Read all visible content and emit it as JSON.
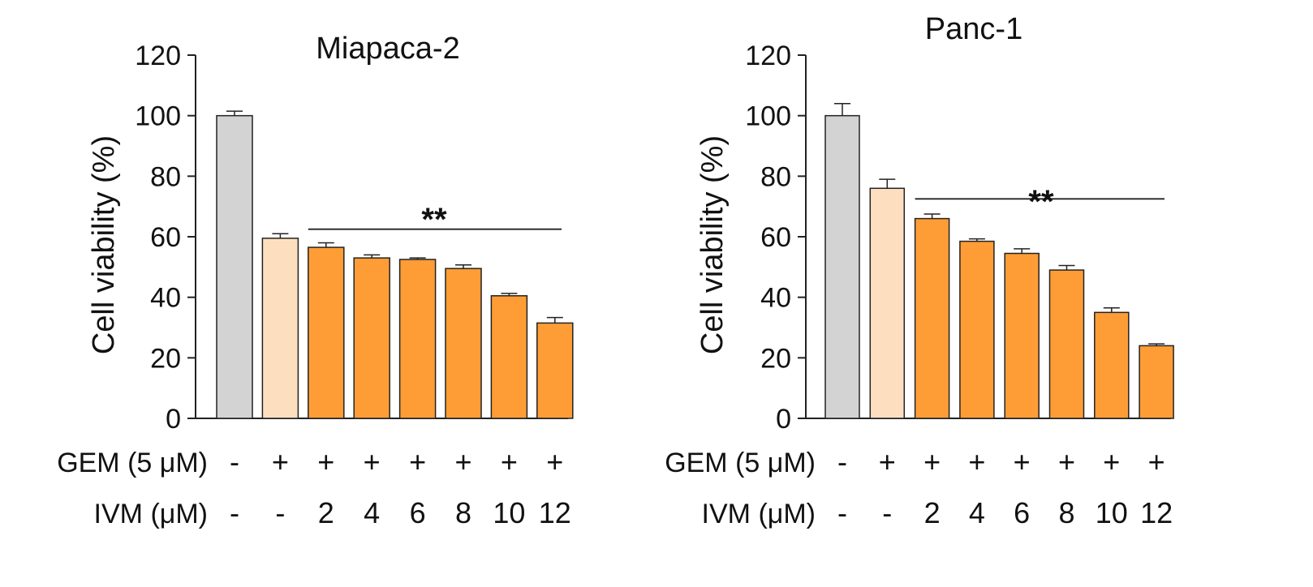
{
  "colors": {
    "control": "#d3d3d3",
    "gem_only": "#fddfc0",
    "treated": "#fe9d36",
    "stroke": "#222222"
  },
  "chart_data": [
    {
      "type": "bar",
      "title": "Miapaca-2",
      "xlabel": "",
      "ylabel": "Cell viability (%)",
      "ylim": [
        0,
        120
      ],
      "yticks": [
        0,
        20,
        40,
        60,
        80,
        100,
        120
      ],
      "yticks_labels": [
        "0",
        "20",
        "40",
        "60",
        "80",
        "100",
        "120"
      ],
      "values": [
        100,
        59.5,
        56.5,
        53,
        52.5,
        49.5,
        40.5,
        31.5
      ],
      "errors": [
        1.5,
        1.5,
        1.5,
        1,
        0.5,
        1.2,
        0.8,
        1.8
      ],
      "bar_colors": [
        "control",
        "gem_only",
        "treated",
        "treated",
        "treated",
        "treated",
        "treated",
        "treated"
      ],
      "row_labels": [
        "GEM (5 μM)",
        "IVM (μM)"
      ],
      "gem_signs": [
        "-",
        "+",
        "+",
        "+",
        "+",
        "+",
        "+",
        "+"
      ],
      "ivm_doses": [
        "-",
        "-",
        "2",
        "4",
        "6",
        "8",
        "10",
        "12"
      ],
      "significance": {
        "label": "**",
        "from_bar": 2,
        "to_bar": 7,
        "y": 62.5
      }
    },
    {
      "type": "bar",
      "title": "Panc-1",
      "xlabel": "",
      "ylabel": "Cell viability (%)",
      "ylim": [
        0,
        120
      ],
      "yticks": [
        0,
        20,
        40,
        60,
        80,
        100,
        120
      ],
      "yticks_labels": [
        "0",
        "20",
        "40",
        "60",
        "80",
        "100",
        "120"
      ],
      "values": [
        100,
        76,
        66,
        58.5,
        54.5,
        49,
        35,
        24
      ],
      "errors": [
        4,
        3,
        1.5,
        0.8,
        1.5,
        1.5,
        1.5,
        0.6
      ],
      "bar_colors": [
        "control",
        "gem_only",
        "treated",
        "treated",
        "treated",
        "treated",
        "treated",
        "treated"
      ],
      "row_labels": [
        "GEM (5 μM)",
        "IVM (μM)"
      ],
      "gem_signs": [
        "-",
        "+",
        "+",
        "+",
        "+",
        "+",
        "+",
        "+"
      ],
      "ivm_doses": [
        "-",
        "-",
        "2",
        "4",
        "6",
        "8",
        "10",
        "12"
      ],
      "significance": {
        "label": "**",
        "from_bar": 2,
        "to_bar": 7,
        "y": 72.5
      }
    }
  ]
}
